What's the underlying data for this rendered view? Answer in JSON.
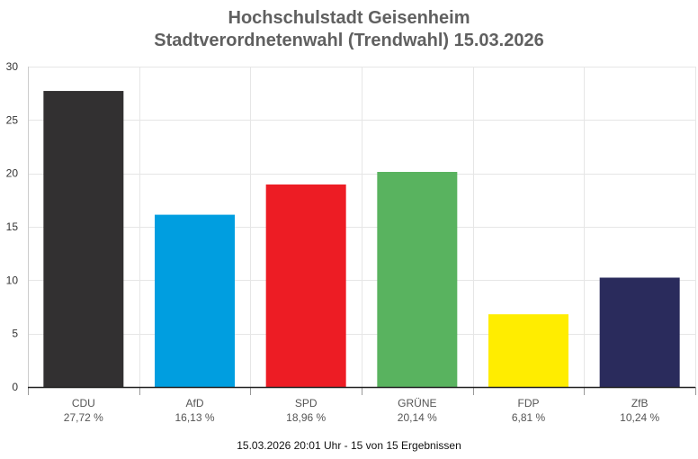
{
  "title": {
    "line1": "Hochschulstadt Geisenheim",
    "line2": "Stadtverordnetenwahl (Trendwahl) 15.03.2026"
  },
  "footer": "15.03.2026 20:01 Uhr - 15 von 15 Ergebnissen",
  "chart_data": {
    "type": "bar",
    "categories": [
      "CDU",
      "AfD",
      "SPD",
      "GRÜNE",
      "FDP",
      "ZfB"
    ],
    "values": [
      27.72,
      16.13,
      18.96,
      20.14,
      6.81,
      10.24
    ],
    "value_labels": [
      "27,72 %",
      "16,13 %",
      "18,96 %",
      "20,14 %",
      "6,81 %",
      "10,24 %"
    ],
    "colors": [
      "#323031",
      "#009ee0",
      "#ed1c24",
      "#59b35f",
      "#ffed00",
      "#2a2b5c"
    ],
    "ylim": [
      0,
      30
    ],
    "yticks": [
      0,
      5,
      10,
      15,
      20,
      25,
      30
    ],
    "grid": true,
    "legend": "none"
  }
}
